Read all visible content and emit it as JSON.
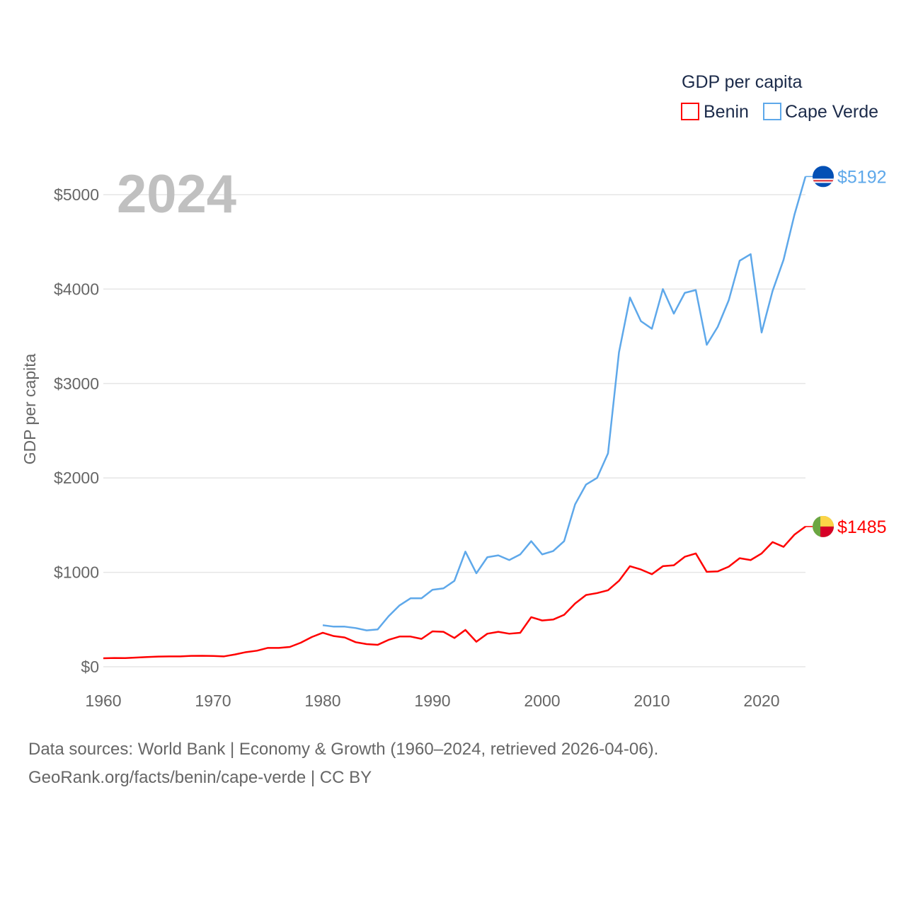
{
  "chart_data": {
    "type": "line",
    "title": "GDP per capita",
    "ylabel": "GDP per capita",
    "xlabel": "",
    "year_overlay": "2024",
    "xlim": [
      1960,
      2024
    ],
    "ylim": [
      0,
      5000
    ],
    "grid": true,
    "legend_placement": "top-right",
    "x_ticks": [
      "1960",
      "1970",
      "1980",
      "1990",
      "2000",
      "2010",
      "2020"
    ],
    "y_ticks": [
      "$0",
      "$1000",
      "$2000",
      "$3000",
      "$4000",
      "$5000"
    ],
    "series": [
      {
        "name": "Benin",
        "color": "#ff0000",
        "end_label": "$1485",
        "start_year": 1960,
        "values": [
          90,
          93,
          92,
          97,
          103,
          108,
          110,
          110,
          115,
          116,
          114,
          110,
          130,
          155,
          170,
          200,
          200,
          210,
          255,
          315,
          360,
          325,
          310,
          260,
          240,
          232,
          285,
          320,
          320,
          295,
          375,
          370,
          305,
          390,
          265,
          350,
          370,
          350,
          360,
          525,
          490,
          500,
          550,
          670,
          760,
          780,
          810,
          910,
          1065,
          1030,
          980,
          1065,
          1075,
          1165,
          1200,
          1005,
          1010,
          1060,
          1150,
          1130,
          1200,
          1320,
          1270,
          1400,
          1485
        ]
      },
      {
        "name": "Cape Verde",
        "color": "#5ea8ea",
        "end_label": "$5192",
        "start_year": 1980,
        "values": [
          440,
          425,
          425,
          410,
          385,
          395,
          535,
          650,
          725,
          725,
          815,
          830,
          910,
          1220,
          990,
          1160,
          1180,
          1130,
          1190,
          1330,
          1190,
          1225,
          1330,
          1720,
          1930,
          2000,
          2260,
          3330,
          3910,
          3660,
          3580,
          4000,
          3740,
          3960,
          3990,
          3410,
          3600,
          3880,
          4300,
          4370,
          3540,
          3980,
          4310,
          4790,
          5192
        ]
      }
    ]
  },
  "footer": {
    "line1": "Data sources: World Bank | Economy & Growth (1960–2024, retrieved 2026-04-06).",
    "line2": "GeoRank.org/facts/benin/cape-verde | CC BY"
  }
}
